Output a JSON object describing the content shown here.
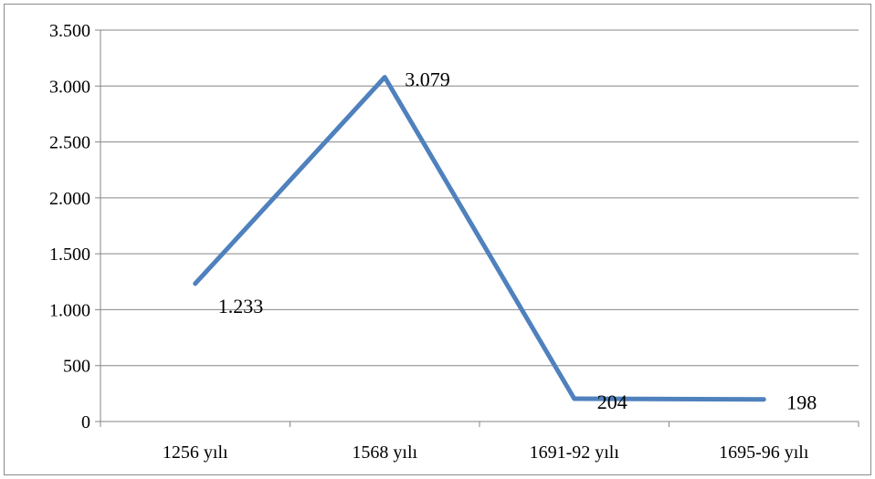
{
  "chart_data": {
    "type": "line",
    "title": "",
    "xlabel": "",
    "ylabel": "",
    "categories": [
      "1256 yılı",
      "1568 yılı",
      "1691-92 yılı",
      "1695-96 yılı"
    ],
    "series": [
      {
        "values": [
          1233,
          3079,
          204,
          198
        ],
        "data_labels": [
          "1.233",
          "3.079",
          "204",
          "198"
        ],
        "color": "#4f81bd"
      }
    ],
    "ylim": [
      0,
      3500
    ],
    "yticks": [
      0,
      500,
      1000,
      1500,
      2000,
      2500,
      3000,
      3500
    ],
    "ytick_labels": [
      "0",
      "500",
      "1.000",
      "1.500",
      "2.000",
      "2.500",
      "3.000",
      "3.500"
    ],
    "grid": true,
    "legend": "none",
    "colors": {
      "gridline": "#868686",
      "axis": "#868686",
      "frame": "#8c8c8c"
    }
  }
}
